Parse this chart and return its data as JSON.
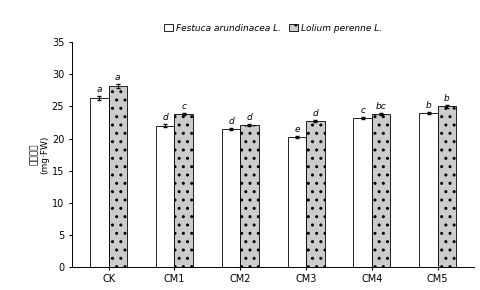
{
  "categories": [
    "CK",
    "CM1",
    "CM2",
    "CM3",
    "CM4",
    "CM5"
  ],
  "species1_values": [
    26.3,
    22.0,
    21.5,
    20.2,
    23.2,
    24.0
  ],
  "species2_values": [
    28.2,
    23.8,
    22.1,
    22.8,
    23.8,
    25.0
  ],
  "species1_errors": [
    0.3,
    0.25,
    0.2,
    0.15,
    0.2,
    0.2
  ],
  "species2_errors": [
    0.25,
    0.15,
    0.2,
    0.15,
    0.15,
    0.2
  ],
  "species1_labels": [
    "a",
    "d",
    "d",
    "e",
    "c",
    "b"
  ],
  "species2_labels": [
    "a",
    "c",
    "d",
    "d",
    "bc",
    "b"
  ],
  "species1_name": "Festuca arundinacea L.",
  "species2_name": "Lolium perenne L.",
  "ylabel_cn": "规草层继",
  "ylabel_unit": "(mg·FW)",
  "ylim": [
    0,
    35
  ],
  "yticks": [
    0,
    5,
    10,
    15,
    20,
    25,
    30,
    35
  ],
  "bar_width": 0.28,
  "species1_color": "white",
  "species2_color": "#cccccc",
  "edge_color": "black",
  "hatch2": "..",
  "figure_bg": "white",
  "fontsize_tick": 7,
  "fontsize_label": 6.5,
  "fontsize_legend": 6.5,
  "fontsize_annot": 6.5
}
